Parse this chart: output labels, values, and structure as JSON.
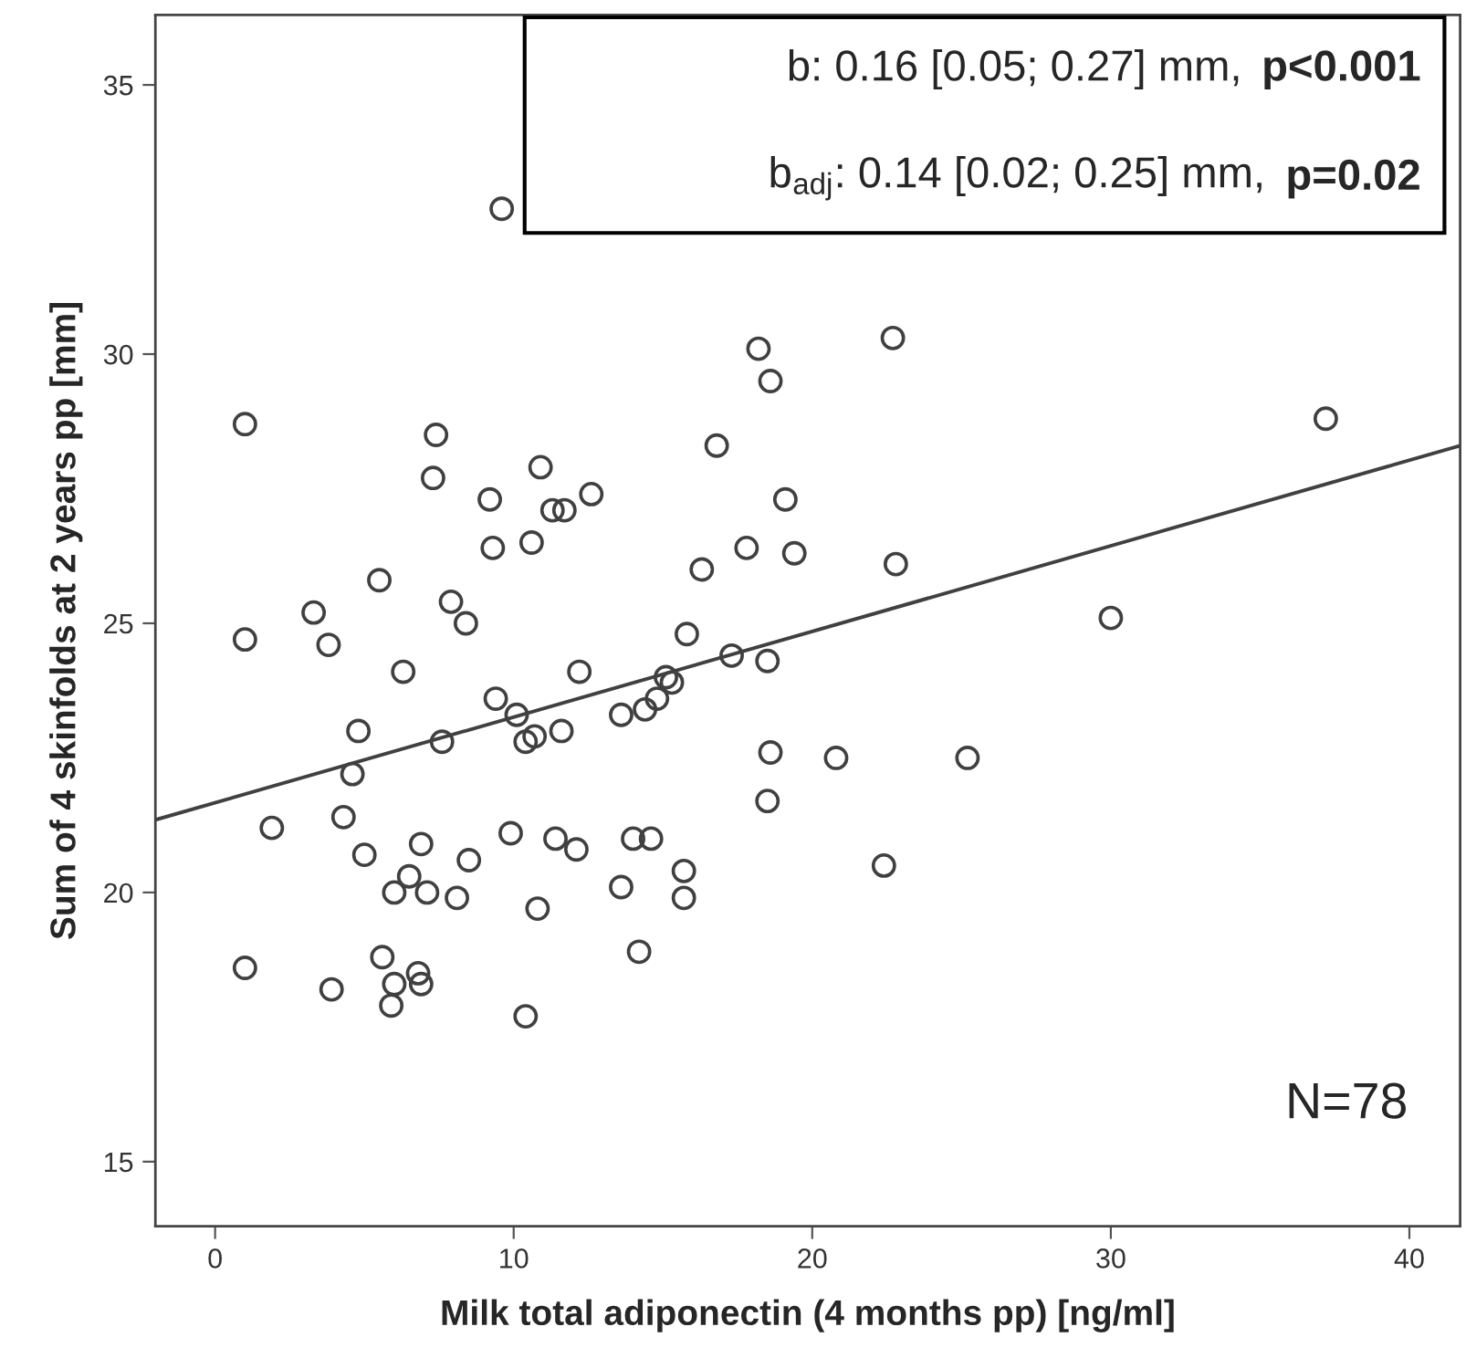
{
  "chart_data": {
    "type": "scatter",
    "xlabel": "Milk total adiponectin (4 months pp) [ng/ml]",
    "ylabel": "Sum of 4 skinfolds at 2 years pp [mm]",
    "annotations": [
      "b: 0.16 [0.05; 0.27] mm,",
      "p<0.001",
      "b$_{adj}$: 0.14 [0.02; 0.25] mm,",
      "p=0.02",
      "N=78"
    ],
    "xlim": [
      -2,
      41.7
    ],
    "ylim": [
      13.8,
      36.3
    ],
    "xticks": [
      0,
      10,
      20,
      30,
      40
    ],
    "yticks": [
      15,
      20,
      25,
      30,
      35
    ],
    "grid": false,
    "marker": "circle",
    "series": [
      {
        "color": "#404040",
        "x": [
          9.6,
          18.2,
          22.7,
          18.6,
          1.0,
          37.2,
          7.4,
          16.8,
          10.9,
          7.3,
          12.6,
          9.2,
          19.1,
          11.3,
          11.7,
          10.6,
          9.3,
          17.8,
          19.4,
          22.8,
          16.3,
          5.5,
          7.9,
          3.3,
          30.0,
          8.4,
          15.8,
          1.0,
          3.8,
          17.3,
          18.5,
          6.3,
          12.2,
          15.1,
          15.3,
          9.4,
          14.8,
          10.1,
          13.6,
          14.4,
          4.8,
          11.6,
          10.7,
          10.4,
          7.6,
          18.6,
          20.8,
          25.2,
          4.6,
          18.5,
          4.3,
          1.9,
          9.9,
          11.4,
          14.0,
          14.6,
          6.9,
          12.1,
          5.0,
          8.5,
          22.4,
          15.7,
          6.5,
          13.6,
          6.0,
          7.1,
          8.1,
          15.7,
          10.8,
          14.2,
          5.6,
          1.0,
          6.8,
          6.0,
          6.9,
          3.9,
          5.9,
          10.4
        ],
        "values": [
          32.7,
          30.1,
          30.3,
          29.5,
          28.7,
          28.8,
          28.5,
          28.3,
          27.9,
          27.7,
          27.4,
          27.3,
          27.3,
          27.1,
          27.1,
          26.5,
          26.4,
          26.4,
          26.3,
          26.1,
          26.0,
          25.8,
          25.4,
          25.2,
          25.1,
          25.0,
          24.8,
          24.7,
          24.6,
          24.4,
          24.3,
          24.1,
          24.1,
          24.0,
          23.9,
          23.6,
          23.6,
          23.3,
          23.3,
          23.4,
          23.0,
          23.0,
          22.9,
          22.8,
          22.8,
          22.6,
          22.5,
          22.5,
          22.2,
          21.7,
          21.4,
          21.2,
          21.1,
          21.0,
          21.0,
          21.0,
          20.9,
          20.8,
          20.7,
          20.6,
          20.5,
          20.4,
          20.3,
          20.1,
          20.0,
          20.0,
          19.9,
          19.9,
          19.7,
          18.9,
          18.8,
          18.6,
          18.5,
          18.3,
          18.3,
          18.2,
          17.9,
          17.7
        ]
      },
      {
        "type": "line",
        "color": "#404040",
        "marker": "none",
        "line_style": "solid",
        "x": [
          -2,
          41.7
        ],
        "values": [
          21.35,
          28.3
        ]
      }
    ]
  }
}
